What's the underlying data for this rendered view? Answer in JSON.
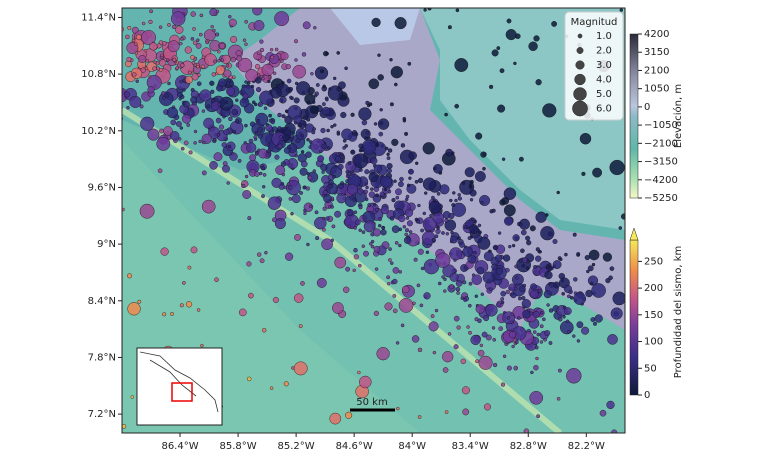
{
  "map": {
    "xlim": [
      -87.0,
      -81.8
    ],
    "ylim": [
      7.0,
      11.5
    ],
    "xticks": [
      {
        "value": -86.4,
        "label": "86.4°W"
      },
      {
        "value": -85.8,
        "label": "85.8°W"
      },
      {
        "value": -85.2,
        "label": "85.2°W"
      },
      {
        "value": -84.6,
        "label": "84.6°W"
      },
      {
        "value": -84.0,
        "label": "84°W"
      },
      {
        "value": -83.4,
        "label": "83.4°W"
      },
      {
        "value": -82.8,
        "label": "82.8°W"
      },
      {
        "value": -82.2,
        "label": "82.2°W"
      }
    ],
    "yticks": [
      {
        "value": 11.4,
        "label": "11.4°N"
      },
      {
        "value": 10.8,
        "label": "10.8°N"
      },
      {
        "value": 10.2,
        "label": "10.2°N"
      },
      {
        "value": 9.6,
        "label": "9.6°N"
      },
      {
        "value": 9.0,
        "label": "9°N"
      },
      {
        "value": 8.4,
        "label": "8.4°N"
      },
      {
        "value": 7.8,
        "label": "7.8°N"
      },
      {
        "value": 7.2,
        "label": "7.2°N"
      }
    ],
    "scale_bar": "50 km"
  },
  "legend": {
    "title": "Magnitud",
    "sizes": [
      {
        "value": 1,
        "label": "1.0"
      },
      {
        "value": 2,
        "label": "2.0"
      },
      {
        "value": 3,
        "label": "3.0"
      },
      {
        "value": 4,
        "label": "4.0"
      },
      {
        "value": 5,
        "label": "5.0"
      },
      {
        "value": 6,
        "label": "6.0"
      }
    ]
  },
  "elevation_colorbar": {
    "label": "Elevación, m",
    "lim": [
      -5250,
      4200
    ],
    "ticks": [
      4200,
      3150,
      2100,
      1050,
      0,
      {
        "value": -1050,
        "label": "−1050"
      },
      {
        "value": -2100,
        "label": "−2100"
      },
      {
        "value": -3150,
        "label": "−3150"
      },
      {
        "value": -4200,
        "label": "−4200"
      },
      {
        "value": -5250,
        "label": "−5250"
      }
    ]
  },
  "depth_colorbar": {
    "label": "Profundidad del sismo, km",
    "lim": [
      0,
      290
    ],
    "ticks": [
      0,
      50,
      100,
      150,
      200,
      250
    ]
  }
}
